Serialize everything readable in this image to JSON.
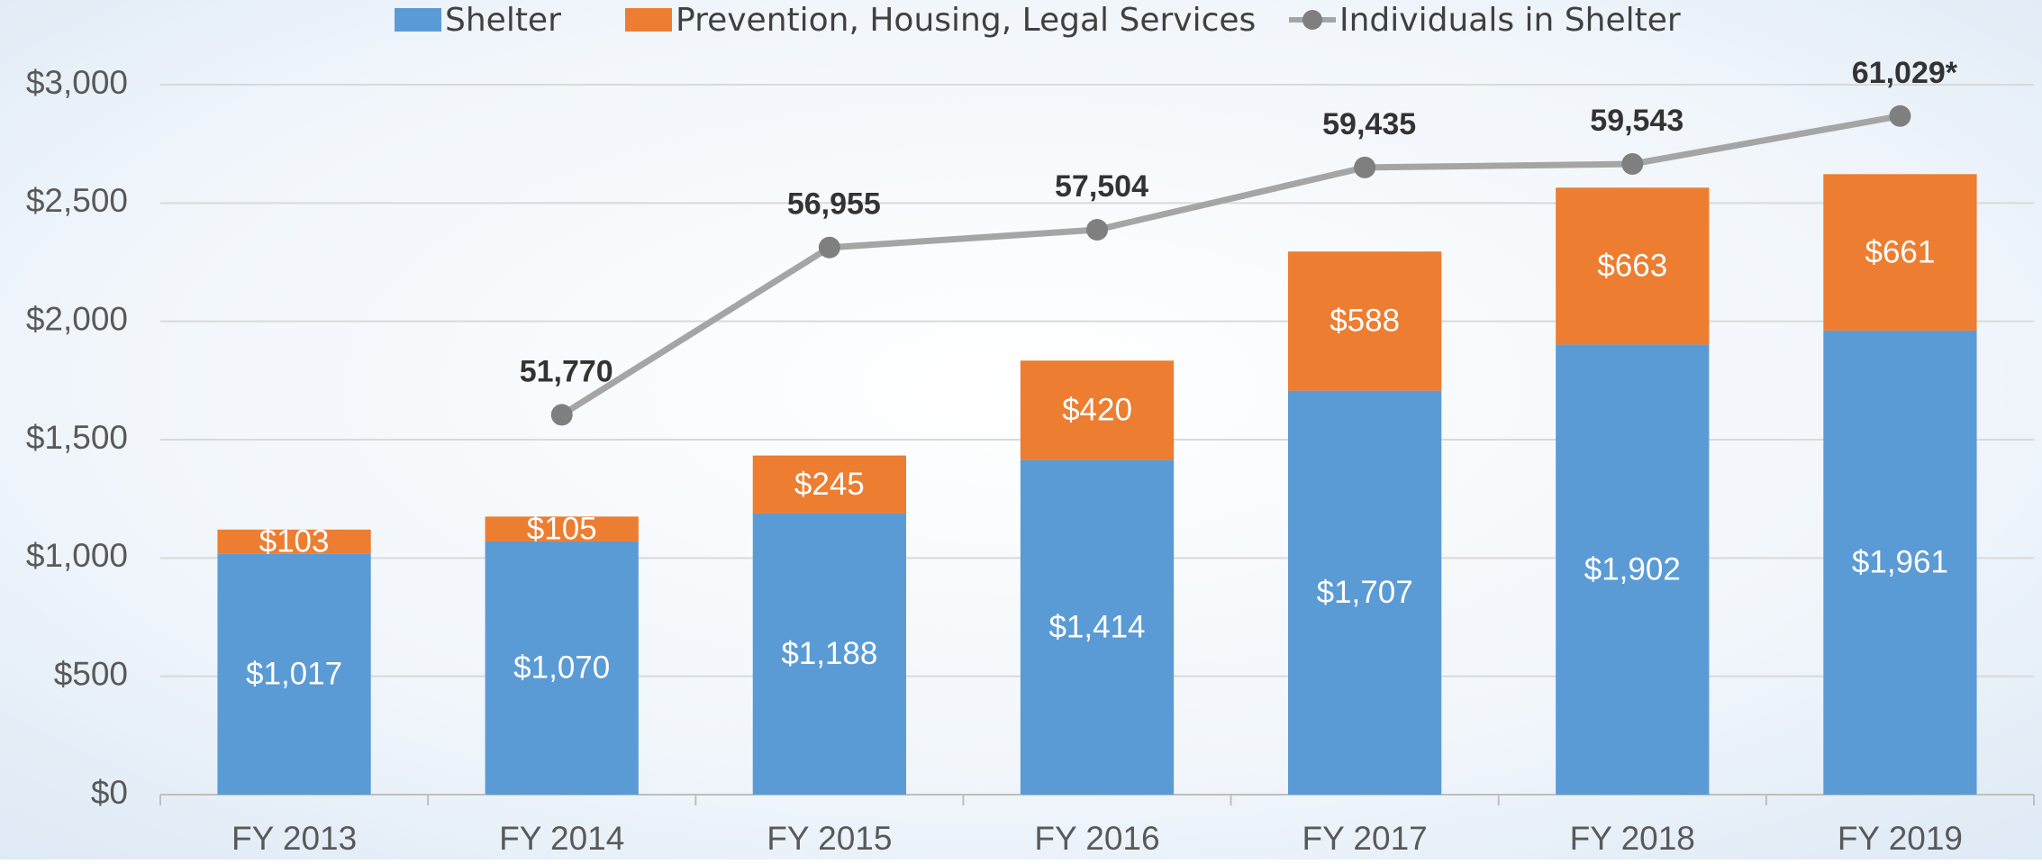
{
  "chart_data": {
    "type": "bar",
    "stacked": true,
    "categories": [
      "FY 2013",
      "FY 2014",
      "FY 2015",
      "FY 2016",
      "FY 2017",
      "FY 2018",
      "FY 2019"
    ],
    "series": [
      {
        "name": "Shelter",
        "color": "#5b9bd5",
        "values": [
          1017,
          1070,
          1188,
          1414,
          1707,
          1902,
          1961
        ],
        "value_labels": [
          "$1,017",
          "$1,070",
          "$1,188",
          "$1,414",
          "$1,707",
          "$1,902",
          "$1,961"
        ]
      },
      {
        "name": "Prevention, Housing, Legal Services",
        "color": "#ed7d31",
        "values": [
          103,
          105,
          245,
          420,
          588,
          663,
          661
        ],
        "value_labels": [
          "$103",
          "$105",
          "$245",
          "$420",
          "$588",
          "$663",
          "$661"
        ]
      },
      {
        "name": "Individuals in Shelter",
        "type": "line",
        "axis": "y2",
        "color": "#a5a5a5",
        "marker_color": "#7f7f7f",
        "values": [
          null,
          51770,
          56955,
          57504,
          59435,
          59543,
          61029
        ],
        "value_labels": [
          null,
          "51,770",
          "56,955",
          "57,504",
          "59,435",
          "59,543",
          "61,029*"
        ]
      }
    ],
    "ylim": [
      0,
      3000
    ],
    "yticks": [
      {
        "value": 0,
        "label": "$0"
      },
      {
        "value": 500,
        "label": "$500"
      },
      {
        "value": 1000,
        "label": "$1,000"
      },
      {
        "value": 1500,
        "label": "$1,500"
      },
      {
        "value": 2000,
        "label": "$2,000"
      },
      {
        "value": 2500,
        "label": "$2,500"
      },
      {
        "value": 3000,
        "label": "$3,000"
      }
    ],
    "y2lim": [
      40000,
      62000
    ],
    "grid": true,
    "legend": "top"
  }
}
